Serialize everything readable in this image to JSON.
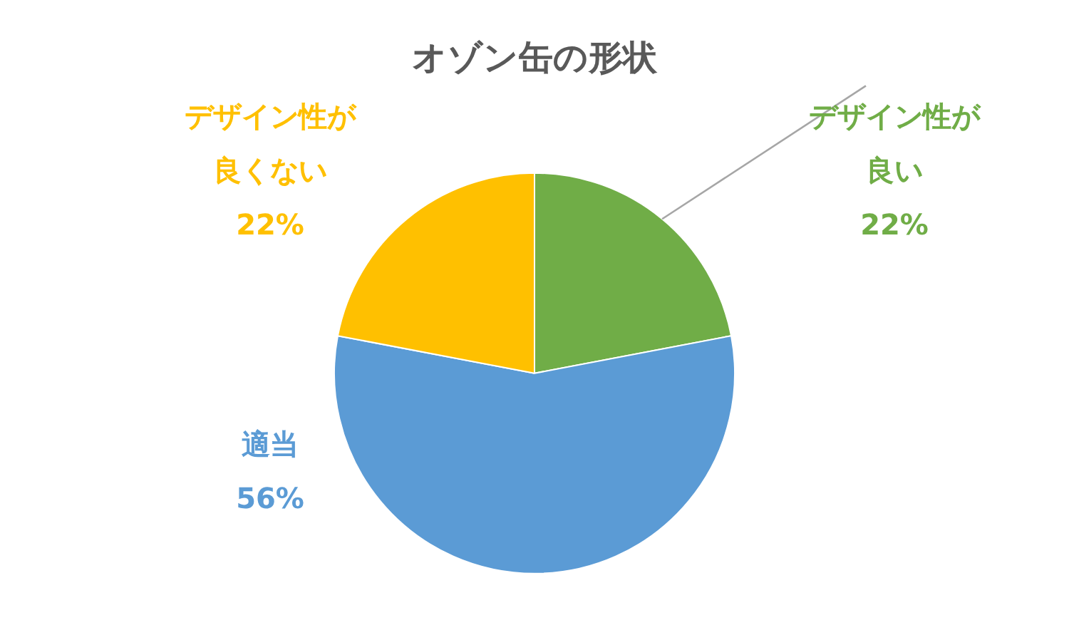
{
  "chart_data": {
    "type": "pie",
    "title": "オゾン缶の形状",
    "categories": [
      "デザイン性が良い",
      "適当",
      "デザイン性が良くない"
    ],
    "values": [
      22,
      56,
      22
    ],
    "colors": [
      "#70ad47",
      "#5b9bd5",
      "#ffc000"
    ],
    "value_labels": [
      "22%",
      "56%",
      "22%"
    ],
    "legend": false
  }
}
